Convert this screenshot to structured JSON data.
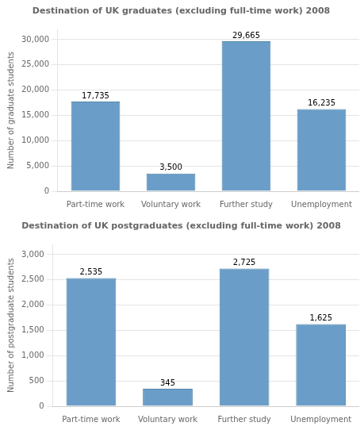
{
  "chart_data": [
    {
      "type": "bar",
      "title": "Destination of UK graduates (excluding full-time work) 2008",
      "categories": [
        "Part-time work",
        "Voluntary work",
        "Further study",
        "Unemployment"
      ],
      "values": [
        17735,
        3500,
        29665,
        16235
      ],
      "value_labels": [
        "17,735",
        "3,500",
        "29,665",
        "16,235"
      ],
      "color": "#6A9DC8",
      "ylabel": "Number of graduate students",
      "ylim": [
        0,
        32000
      ],
      "yticks": [
        0,
        {
          "value": 5000,
          "label": "5,000"
        },
        {
          "value": 10000,
          "label": "10,000"
        },
        {
          "value": 15000,
          "label": "15,000"
        },
        {
          "value": 20000,
          "label": "20,000"
        },
        {
          "value": 25000,
          "label": "25,000"
        },
        {
          "value": 30000,
          "label": "30,000"
        }
      ],
      "grid": true,
      "data_labels": true
    },
    {
      "type": "bar",
      "title": "Destination of UK postgraduates (excluding full-time work) 2008",
      "categories": [
        "Part-time work",
        "Voluntary work",
        "Further study",
        "Unemployment"
      ],
      "values": [
        2535,
        345,
        2725,
        1625
      ],
      "value_labels": [
        "2,535",
        "345",
        "2,725",
        "1,625"
      ],
      "color": "#6A9DC8",
      "ylabel": "Number of postgraduate students",
      "ylim": [
        0,
        3200
      ],
      "yticks": [
        0,
        500,
        {
          "value": 1000,
          "label": "1,000"
        },
        {
          "value": 1500,
          "label": "1,500"
        },
        {
          "value": 2000,
          "label": "2,000"
        },
        {
          "value": 2500,
          "label": "2,500"
        },
        {
          "value": 3000,
          "label": "3,000"
        }
      ],
      "grid": true,
      "data_labels": true
    }
  ]
}
